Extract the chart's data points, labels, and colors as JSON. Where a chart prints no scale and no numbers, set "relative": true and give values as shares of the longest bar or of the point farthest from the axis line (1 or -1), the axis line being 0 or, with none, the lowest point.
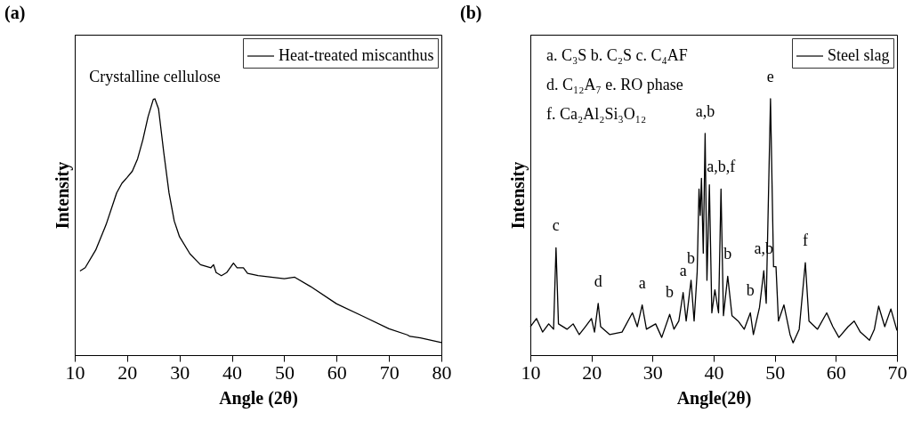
{
  "chart_data": [
    {
      "type": "line",
      "title": "(a)",
      "xlabel": "Angle (2θ)",
      "ylabel": "Intensity",
      "relative": true,
      "legend": "top right",
      "xlim": [
        10,
        80
      ],
      "xticks": [
        10,
        20,
        30,
        40,
        50,
        60,
        70,
        80
      ],
      "x": [
        11,
        12,
        14,
        16,
        18,
        19,
        20,
        21,
        22,
        23,
        24,
        25,
        25.3,
        26,
        27,
        28,
        29,
        30,
        32,
        34,
        36,
        36.5,
        37,
        38,
        39,
        40.3,
        41,
        42.2,
        43,
        45,
        50,
        52,
        55,
        60,
        65,
        70,
        73.5,
        74,
        76,
        80
      ],
      "series": [
        {
          "name": "Heat-treated miscanthus",
          "color": "#000000",
          "values": [
            0.328,
            0.341,
            0.41,
            0.51,
            0.633,
            0.67,
            0.693,
            0.718,
            0.766,
            0.84,
            0.93,
            0.998,
            1,
            0.961,
            0.79,
            0.633,
            0.523,
            0.462,
            0.395,
            0.353,
            0.341,
            0.353,
            0.322,
            0.31,
            0.322,
            0.359,
            0.341,
            0.341,
            0.319,
            0.31,
            0.298,
            0.304,
            0.268,
            0.2,
            0.152,
            0.103,
            0.079,
            0.073,
            0.067,
            0.049
          ]
        }
      ],
      "annotations": [
        {
          "text": "Crystalline cellulose",
          "x": 25.3,
          "y": 1
        }
      ]
    },
    {
      "type": "line",
      "title": "(b)",
      "xlabel": "Angle(2θ)",
      "ylabel": "Intensity",
      "relative": true,
      "legend": "top right",
      "xlim": [
        10,
        70
      ],
      "xticks": [
        10,
        20,
        30,
        40,
        50,
        60,
        70
      ],
      "x": [
        10,
        11,
        12,
        13,
        13.8,
        14.2,
        14.6,
        16,
        17,
        18,
        19,
        20,
        20.5,
        21.1,
        21.5,
        23,
        25,
        26.7,
        27.5,
        28.3,
        29,
        30.5,
        31.5,
        32.8,
        33.5,
        34.3,
        35,
        35.5,
        36.3,
        36.8,
        37.3,
        37.6,
        37.8,
        38,
        38.3,
        38.6,
        38.9,
        39.3,
        39.7,
        40.2,
        40.8,
        41.2,
        41.6,
        42.3,
        43,
        44,
        45,
        46,
        46.5,
        47.5,
        48.2,
        48.6,
        49.3,
        49.8,
        50.2,
        50.6,
        51.5,
        52.5,
        53,
        54,
        55,
        55.6,
        57,
        58.5,
        59.5,
        60.5,
        62,
        63,
        64,
        65.5,
        66.3,
        67,
        68,
        69,
        70
      ],
      "series": [
        {
          "name": "Steel slag",
          "color": "#000000",
          "values": [
            0.111,
            0.143,
            0.09,
            0.122,
            0.101,
            0.419,
            0.122,
            0.101,
            0.122,
            0.08,
            0.111,
            0.143,
            0.09,
            0.202,
            0.111,
            0.08,
            0.09,
            0.165,
            0.111,
            0.196,
            0.101,
            0.122,
            0.069,
            0.159,
            0.101,
            0.133,
            0.244,
            0.133,
            0.292,
            0.133,
            0.324,
            0.648,
            0.545,
            0.69,
            0.398,
            0.865,
            0.292,
            0.664,
            0.165,
            0.255,
            0.165,
            0.648,
            0.154,
            0.308,
            0.154,
            0.133,
            0.101,
            0.165,
            0.08,
            0.186,
            0.329,
            0.202,
            1,
            0.345,
            0.345,
            0.133,
            0.196,
            0.08,
            0.048,
            0.101,
            0.361,
            0.133,
            0.101,
            0.165,
            0.111,
            0.069,
            0.111,
            0.133,
            0.09,
            0.058,
            0.101,
            0.191,
            0.111,
            0.18,
            0.096
          ]
        }
      ],
      "annotations": [
        "a. C₃S   b. C₂S  c. C₄AF",
        "d. C₁₂A₇     e. RO phase",
        "f. Ca₂Al₂Si₃O₁₂",
        {
          "text": "c",
          "x": 14.2,
          "y": 0.419
        },
        {
          "text": "d",
          "x": 21.1,
          "y": 0.202
        },
        {
          "text": "a",
          "x": 28.3,
          "y": 0.196
        },
        {
          "text": "b",
          "x": 32.8,
          "y": 0.159
        },
        {
          "text": "a",
          "x": 35,
          "y": 0.244
        },
        {
          "text": "b",
          "x": 36.3,
          "y": 0.292
        },
        {
          "text": "a,b",
          "x": 38.6,
          "y": 0.865
        },
        {
          "text": "a,b,f",
          "x": 41.2,
          "y": 0.648
        },
        {
          "text": "b",
          "x": 42.3,
          "y": 0.308
        },
        {
          "text": "b",
          "x": 46,
          "y": 0.165
        },
        {
          "text": "a,b",
          "x": 48.2,
          "y": 0.329
        },
        {
          "text": "e",
          "x": 49.3,
          "y": 1
        },
        {
          "text": "f",
          "x": 55,
          "y": 0.361
        }
      ]
    }
  ]
}
